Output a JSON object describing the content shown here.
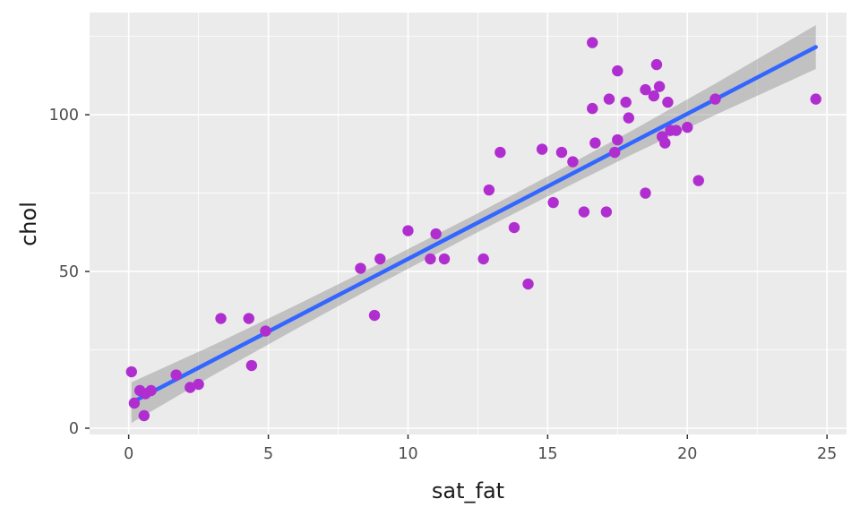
{
  "chart_data": {
    "type": "scatter",
    "title": "",
    "xlabel": "sat_fat",
    "ylabel": "chol",
    "x_ticks": [
      0,
      5,
      10,
      15,
      20,
      25
    ],
    "x_tick_labels": [
      "0",
      "5",
      "10",
      "15",
      "20",
      "25"
    ],
    "x_minor_ticks": [
      2.5,
      7.5,
      12.5,
      17.5,
      22.5
    ],
    "y_ticks": [
      0,
      50,
      100
    ],
    "y_tick_labels": [
      "0",
      "50",
      "100"
    ],
    "y_minor_ticks": [
      25,
      75,
      125
    ],
    "x_view": [
      -1.4,
      25.7
    ],
    "y_view": [
      -2,
      132.6
    ],
    "grid": true,
    "legend": "none",
    "points": {
      "x": [
        0.1,
        0.2,
        0.4,
        0.55,
        0.6,
        0.8,
        1.7,
        2.2,
        2.5,
        3.3,
        4.3,
        4.4,
        4.9,
        8.3,
        8.8,
        9.0,
        10.0,
        10.8,
        11.0,
        11.3,
        12.7,
        12.9,
        13.3,
        13.8,
        14.3,
        14.8,
        15.2,
        15.5,
        15.9,
        16.3,
        16.6,
        16.6,
        16.7,
        17.1,
        17.2,
        17.4,
        17.5,
        17.5,
        17.8,
        17.9,
        18.5,
        18.5,
        18.8,
        18.9,
        19.0,
        19.1,
        19.2,
        19.3,
        19.4,
        19.6,
        20.0,
        20.4,
        21.0,
        24.6
      ],
      "y": [
        18,
        8,
        12,
        4,
        11,
        12,
        17,
        13,
        14,
        35,
        35,
        20,
        31,
        51,
        36,
        54,
        63,
        54,
        62,
        54,
        54,
        76,
        88,
        64,
        46,
        89,
        72,
        88,
        85,
        69,
        123,
        102,
        91,
        69,
        105,
        88,
        92,
        114,
        104,
        99,
        75,
        108,
        106,
        116,
        109,
        93,
        91,
        104,
        95,
        95,
        96,
        79,
        105,
        105
      ]
    },
    "smooth": {
      "type": "linear",
      "intercept": 7.7,
      "slope": 4.63,
      "x_start": 0.1,
      "x_end": 24.6,
      "ribbon": [
        [
          0.1,
          6.5
        ],
        [
          3,
          4.8
        ],
        [
          6,
          3.8
        ],
        [
          9,
          3.2
        ],
        [
          12.35,
          3.0
        ],
        [
          15,
          3.2
        ],
        [
          18,
          3.8
        ],
        [
          21,
          5.0
        ],
        [
          24.6,
          7.0
        ]
      ]
    },
    "colors": {
      "point": "#B02ED0",
      "line": "#3366FF",
      "ribbon": "rgba(125,125,125,0.38)",
      "panel": "#EBEBEB",
      "grid": "#FFFFFF",
      "tick_mark": "#333333",
      "tick_text": "#4D4D4D",
      "axis_title": "#1A1A1A"
    }
  }
}
